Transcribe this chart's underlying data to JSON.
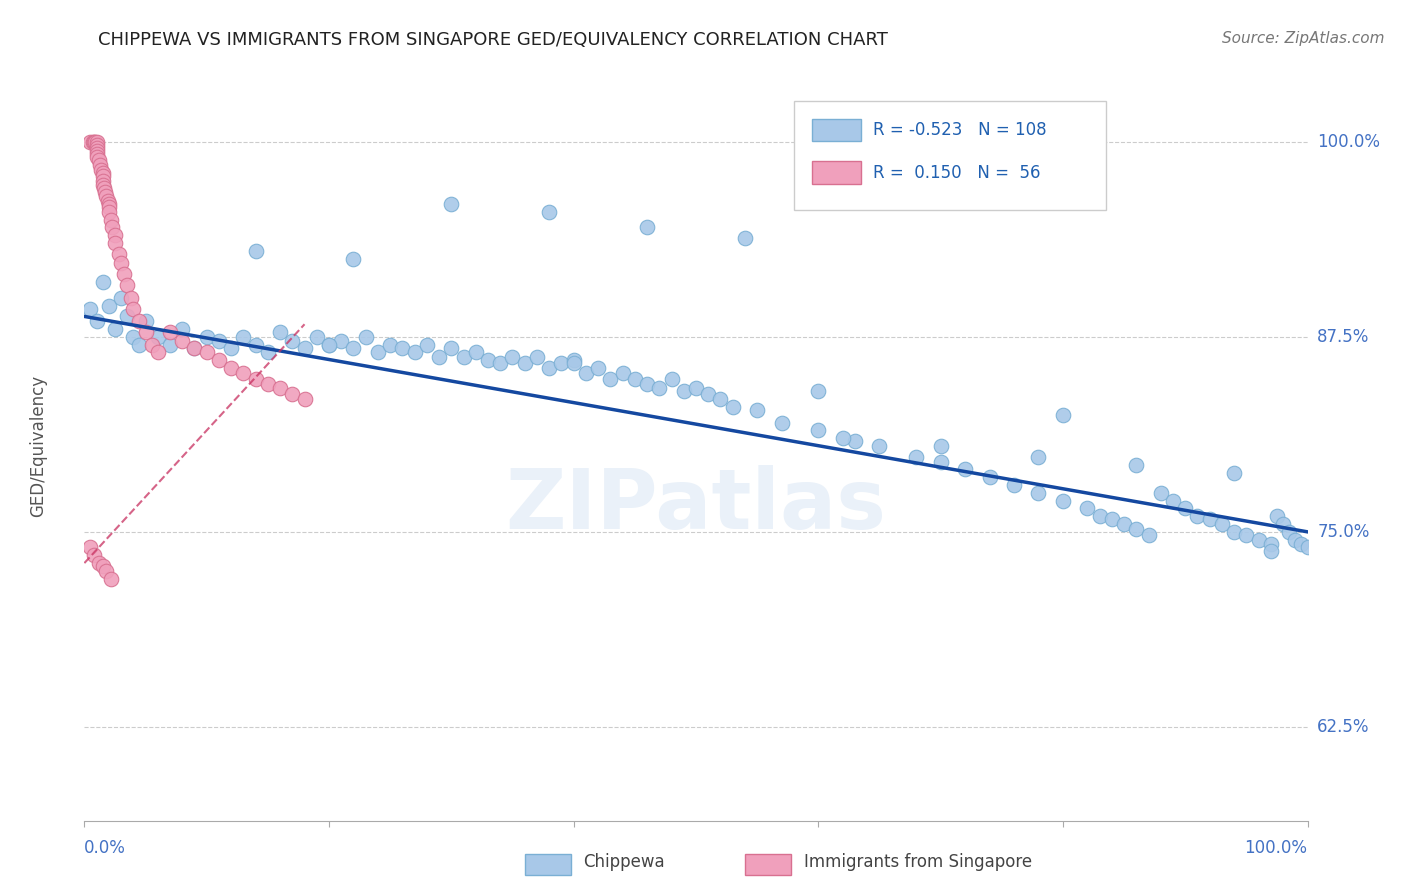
{
  "title": "CHIPPEWA VS IMMIGRANTS FROM SINGAPORE GED/EQUIVALENCY CORRELATION CHART",
  "source": "Source: ZipAtlas.com",
  "ylabel": "GED/Equivalency",
  "ytick_labels": [
    "62.5%",
    "75.0%",
    "87.5%",
    "100.0%"
  ],
  "ytick_values": [
    0.625,
    0.75,
    0.875,
    1.0
  ],
  "xlim": [
    0.0,
    1.0
  ],
  "ylim": [
    0.565,
    1.045
  ],
  "legend_r_blue": "-0.523",
  "legend_n_blue": "108",
  "legend_r_pink": "0.150",
  "legend_n_pink": "56",
  "color_blue": "#a8c8e8",
  "color_pink": "#f0a0bc",
  "edge_blue": "#7aafd4",
  "edge_pink": "#d87090",
  "trendline_blue": "#1448a0",
  "trendline_pink": "#c83060",
  "watermark": "ZIPatlas",
  "blue_x": [
    0.005,
    0.01,
    0.015,
    0.02,
    0.025,
    0.03,
    0.035,
    0.04,
    0.045,
    0.05,
    0.06,
    0.07,
    0.08,
    0.09,
    0.1,
    0.11,
    0.12,
    0.13,
    0.14,
    0.15,
    0.16,
    0.17,
    0.18,
    0.19,
    0.2,
    0.21,
    0.22,
    0.23,
    0.24,
    0.25,
    0.26,
    0.27,
    0.28,
    0.29,
    0.3,
    0.31,
    0.32,
    0.33,
    0.34,
    0.35,
    0.36,
    0.37,
    0.38,
    0.39,
    0.4,
    0.41,
    0.42,
    0.43,
    0.44,
    0.45,
    0.46,
    0.47,
    0.48,
    0.49,
    0.5,
    0.51,
    0.52,
    0.53,
    0.55,
    0.57,
    0.6,
    0.63,
    0.65,
    0.68,
    0.7,
    0.72,
    0.74,
    0.76,
    0.78,
    0.8,
    0.82,
    0.83,
    0.84,
    0.85,
    0.86,
    0.87,
    0.88,
    0.89,
    0.9,
    0.91,
    0.92,
    0.93,
    0.94,
    0.95,
    0.96,
    0.97,
    0.97,
    0.975,
    0.98,
    0.985,
    0.99,
    0.995,
    0.14,
    0.22,
    0.3,
    0.38,
    0.46,
    0.54,
    0.62,
    0.7,
    0.78,
    0.86,
    0.94,
    0.2,
    0.4,
    0.6,
    0.8,
    1.0
  ],
  "blue_y": [
    0.893,
    0.885,
    0.91,
    0.895,
    0.88,
    0.9,
    0.888,
    0.875,
    0.87,
    0.885,
    0.875,
    0.87,
    0.88,
    0.868,
    0.875,
    0.872,
    0.868,
    0.875,
    0.87,
    0.865,
    0.878,
    0.872,
    0.868,
    0.875,
    0.87,
    0.872,
    0.868,
    0.875,
    0.865,
    0.87,
    0.868,
    0.865,
    0.87,
    0.862,
    0.868,
    0.862,
    0.865,
    0.86,
    0.858,
    0.862,
    0.858,
    0.862,
    0.855,
    0.858,
    0.86,
    0.852,
    0.855,
    0.848,
    0.852,
    0.848,
    0.845,
    0.842,
    0.848,
    0.84,
    0.842,
    0.838,
    0.835,
    0.83,
    0.828,
    0.82,
    0.815,
    0.808,
    0.805,
    0.798,
    0.795,
    0.79,
    0.785,
    0.78,
    0.775,
    0.77,
    0.765,
    0.76,
    0.758,
    0.755,
    0.752,
    0.748,
    0.775,
    0.77,
    0.765,
    0.76,
    0.758,
    0.755,
    0.75,
    0.748,
    0.745,
    0.742,
    0.738,
    0.76,
    0.755,
    0.75,
    0.745,
    0.742,
    0.93,
    0.925,
    0.96,
    0.955,
    0.945,
    0.938,
    0.81,
    0.805,
    0.798,
    0.793,
    0.788,
    0.87,
    0.858,
    0.84,
    0.825,
    0.74
  ],
  "pink_x": [
    0.005,
    0.007,
    0.008,
    0.009,
    0.01,
    0.01,
    0.01,
    0.01,
    0.01,
    0.01,
    0.012,
    0.013,
    0.014,
    0.015,
    0.015,
    0.015,
    0.015,
    0.016,
    0.017,
    0.018,
    0.019,
    0.02,
    0.02,
    0.02,
    0.022,
    0.023,
    0.025,
    0.025,
    0.028,
    0.03,
    0.032,
    0.035,
    0.038,
    0.04,
    0.045,
    0.05,
    0.055,
    0.06,
    0.07,
    0.08,
    0.09,
    0.1,
    0.11,
    0.12,
    0.13,
    0.14,
    0.15,
    0.16,
    0.17,
    0.18,
    0.005,
    0.008,
    0.012,
    0.015,
    0.018,
    0.022
  ],
  "pink_y": [
    1.0,
    1.0,
    1.0,
    1.0,
    1.0,
    0.998,
    0.996,
    0.994,
    0.992,
    0.99,
    0.988,
    0.985,
    0.982,
    0.98,
    0.978,
    0.975,
    0.972,
    0.97,
    0.968,
    0.965,
    0.962,
    0.96,
    0.958,
    0.955,
    0.95,
    0.945,
    0.94,
    0.935,
    0.928,
    0.922,
    0.915,
    0.908,
    0.9,
    0.893,
    0.885,
    0.878,
    0.87,
    0.865,
    0.878,
    0.872,
    0.868,
    0.865,
    0.86,
    0.855,
    0.852,
    0.848,
    0.845,
    0.842,
    0.838,
    0.835,
    0.74,
    0.735,
    0.73,
    0.728,
    0.725,
    0.72
  ]
}
